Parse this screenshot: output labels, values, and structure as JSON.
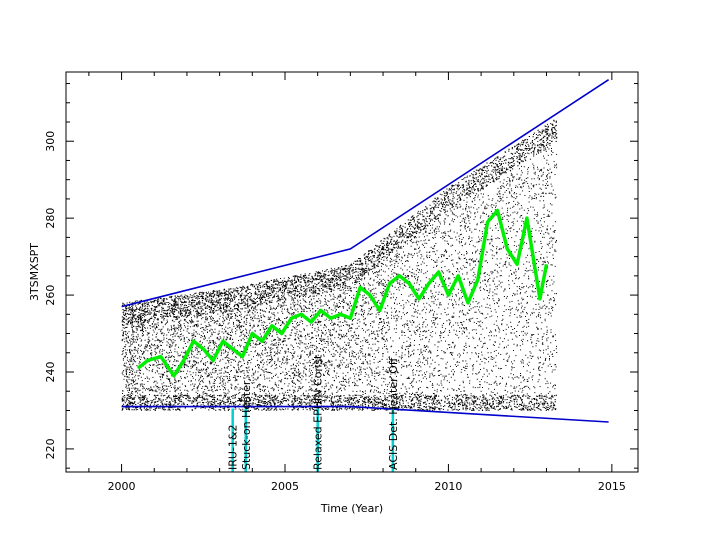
{
  "chart_data": {
    "type": "scatter",
    "title": "",
    "xlabel": "Time (Year)",
    "ylabel": "3TSMXSPT",
    "xlim": [
      1998.3,
      2015.8
    ],
    "ylim": [
      214,
      318
    ],
    "x_ticks": [
      2000,
      2005,
      2010,
      2015
    ],
    "x_minor_step": 1,
    "y_ticks": [
      220,
      240,
      260,
      280,
      300
    ],
    "y_minor_step": 5,
    "grid": false,
    "legend": "none",
    "colors": {
      "points": "#000000",
      "trend": "#00ee00",
      "envelope": "#0000cc",
      "events": "#00d0d0"
    },
    "scatter_cloud": {
      "x_range": [
        2000.0,
        2013.3
      ],
      "lower_bound": 230,
      "upper_bound_segments": [
        {
          "x": 2000.0,
          "y": 258
        },
        {
          "x": 2003.5,
          "y": 262
        },
        {
          "x": 2007.0,
          "y": 268
        },
        {
          "x": 2010.0,
          "y": 288
        },
        {
          "x": 2013.3,
          "y": 306
        }
      ]
    },
    "series": [
      {
        "kind": "trend",
        "x": [
          2000.5,
          2000.8,
          2001.2,
          2001.6,
          2001.9,
          2002.2,
          2002.5,
          2002.8,
          2003.1,
          2003.4,
          2003.7,
          2004.0,
          2004.3,
          2004.6,
          2004.9,
          2005.2,
          2005.5,
          2005.8,
          2006.1,
          2006.4,
          2006.7,
          2007.0,
          2007.3,
          2007.6,
          2007.9,
          2008.2,
          2008.5,
          2008.8,
          2009.1,
          2009.4,
          2009.7,
          2010.0,
          2010.3,
          2010.6,
          2010.9,
          2011.2,
          2011.5,
          2011.8,
          2012.1,
          2012.4,
          2012.8,
          2013.0
        ],
        "y": [
          241,
          243,
          244,
          239,
          243,
          248,
          246,
          243,
          248,
          246,
          244,
          250,
          248,
          252,
          250,
          254,
          255,
          253,
          256,
          254,
          255,
          254,
          262,
          260,
          256,
          263,
          265,
          263,
          259,
          263,
          266,
          260,
          265,
          258,
          264,
          279,
          282,
          272,
          268,
          280,
          259,
          268
        ]
      },
      {
        "kind": "envelope-upper",
        "x": [
          2000.0,
          2007.0,
          2014.9
        ],
        "y": [
          257,
          272,
          316
        ]
      },
      {
        "kind": "envelope-lower",
        "x": [
          2000.0,
          2007.0,
          2014.9
        ],
        "y": [
          231,
          231,
          227
        ]
      }
    ],
    "events": [
      {
        "x": 2003.4,
        "label": "IRU-1&2"
      },
      {
        "x": 2003.8,
        "label": "Stuck-on Heater"
      },
      {
        "x": 2006.0,
        "label": "Relaxed EPHIN Const"
      },
      {
        "x": 2008.3,
        "label": "ACIS Det. Heater Off"
      }
    ]
  }
}
